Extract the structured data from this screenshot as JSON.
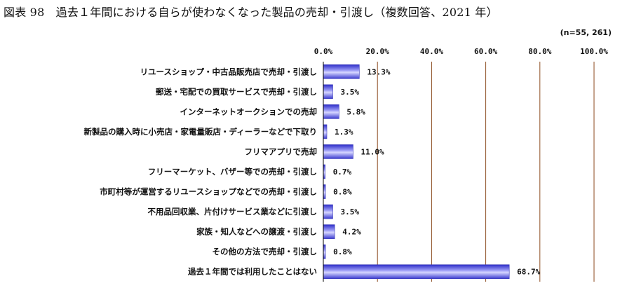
{
  "title": "図表 98　過去１年間における自らが使わなくなった製品の売却・引渡し（複数回答、2021 年）",
  "sample_note": "(n=55, 261)",
  "colors": {
    "bar": "#5a5ae0",
    "bar_edge": "#3a3ab8",
    "bar_highlight": "#c8c8ff",
    "grid": "#8b4a1e",
    "axis": "#000000"
  },
  "chart_data": {
    "type": "bar",
    "orientation": "horizontal",
    "title": "図表 98　過去１年間における自らが使わなくなった製品の売却・引渡し（複数回答、2021 年）",
    "xlabel": "",
    "ylabel": "",
    "xlim": [
      0,
      100
    ],
    "x_ticks": [
      "0.0%",
      "20.0%",
      "40.0%",
      "60.0%",
      "80.0%",
      "100.0%"
    ],
    "tick_values": [
      0,
      20,
      40,
      60,
      80,
      100
    ],
    "grid": true,
    "categories": [
      "リユースショップ・中古品販売店で売却・引渡し",
      "郵送・宅配での買取サービスで売却・引渡し",
      "インターネットオークションでの売却",
      "新製品の購入時に小売店・家電量販店・ディーラーなどで下取り",
      "フリマアプリで売却",
      "フリーマーケット、バザー等での売却・引渡し",
      "市町村等が運営するリユースショップなどでの売却・引渡し",
      "不用品回収業、片付けサービス業などに引渡し",
      "家族・知人などへの譲渡・引渡し",
      "その他の方法で売却・引渡し",
      "過去１年間では利用したことはない"
    ],
    "values": [
      13.3,
      3.5,
      5.8,
      1.3,
      11.0,
      0.7,
      0.8,
      3.5,
      4.2,
      0.8,
      68.7
    ],
    "value_labels": [
      "13.3%",
      "3.5%",
      "5.8%",
      "1.3%",
      "11.0%",
      "0.7%",
      "0.8%",
      "3.5%",
      "4.2%",
      "0.8%",
      "68.7%"
    ]
  }
}
